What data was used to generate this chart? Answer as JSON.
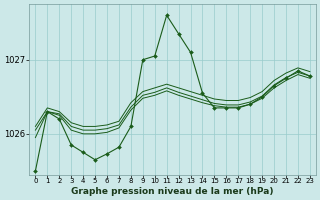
{
  "title": "Graphe pression niveau de la mer (hPa)",
  "bg_color": "#cce8e8",
  "grid_color": "#99cccc",
  "line_color": "#1a5c1a",
  "yticks": [
    1026,
    1027
  ],
  "ylim": [
    1025.45,
    1027.75
  ],
  "xlim": [
    -0.5,
    23.5
  ],
  "xticks": [
    0,
    1,
    2,
    3,
    4,
    5,
    6,
    7,
    8,
    9,
    10,
    11,
    12,
    13,
    14,
    15,
    16,
    17,
    18,
    19,
    20,
    21,
    22,
    23
  ],
  "series": [
    {
      "y": [
        1025.5,
        1026.3,
        1026.2,
        1025.85,
        1025.75,
        1025.65,
        1025.73,
        1025.82,
        1026.1,
        1027.0,
        1027.05,
        1027.6,
        1027.35,
        1027.1,
        1026.55,
        1026.35,
        1026.35,
        1026.35,
        1026.4,
        1026.5,
        1026.65,
        1026.75,
        1026.85,
        1026.78
      ],
      "marker": true
    },
    {
      "y": [
        1025.95,
        1026.3,
        1026.25,
        1026.05,
        1026.0,
        1026.0,
        1026.02,
        1026.08,
        1026.32,
        1026.48,
        1026.52,
        1026.58,
        1026.52,
        1026.47,
        1026.42,
        1026.38,
        1026.36,
        1026.36,
        1026.4,
        1026.48,
        1026.62,
        1026.72,
        1026.8,
        1026.75
      ],
      "marker": false
    },
    {
      "y": [
        1026.05,
        1026.3,
        1026.27,
        1026.1,
        1026.05,
        1026.05,
        1026.07,
        1026.12,
        1026.36,
        1026.52,
        1026.56,
        1026.62,
        1026.56,
        1026.51,
        1026.46,
        1026.41,
        1026.39,
        1026.39,
        1026.43,
        1026.51,
        1026.66,
        1026.76,
        1026.83,
        1026.78
      ],
      "marker": false
    },
    {
      "y": [
        1026.1,
        1026.35,
        1026.3,
        1026.15,
        1026.1,
        1026.1,
        1026.12,
        1026.17,
        1026.42,
        1026.57,
        1026.62,
        1026.67,
        1026.62,
        1026.57,
        1026.52,
        1026.47,
        1026.45,
        1026.45,
        1026.49,
        1026.57,
        1026.72,
        1026.82,
        1026.89,
        1026.84
      ],
      "marker": false
    }
  ]
}
